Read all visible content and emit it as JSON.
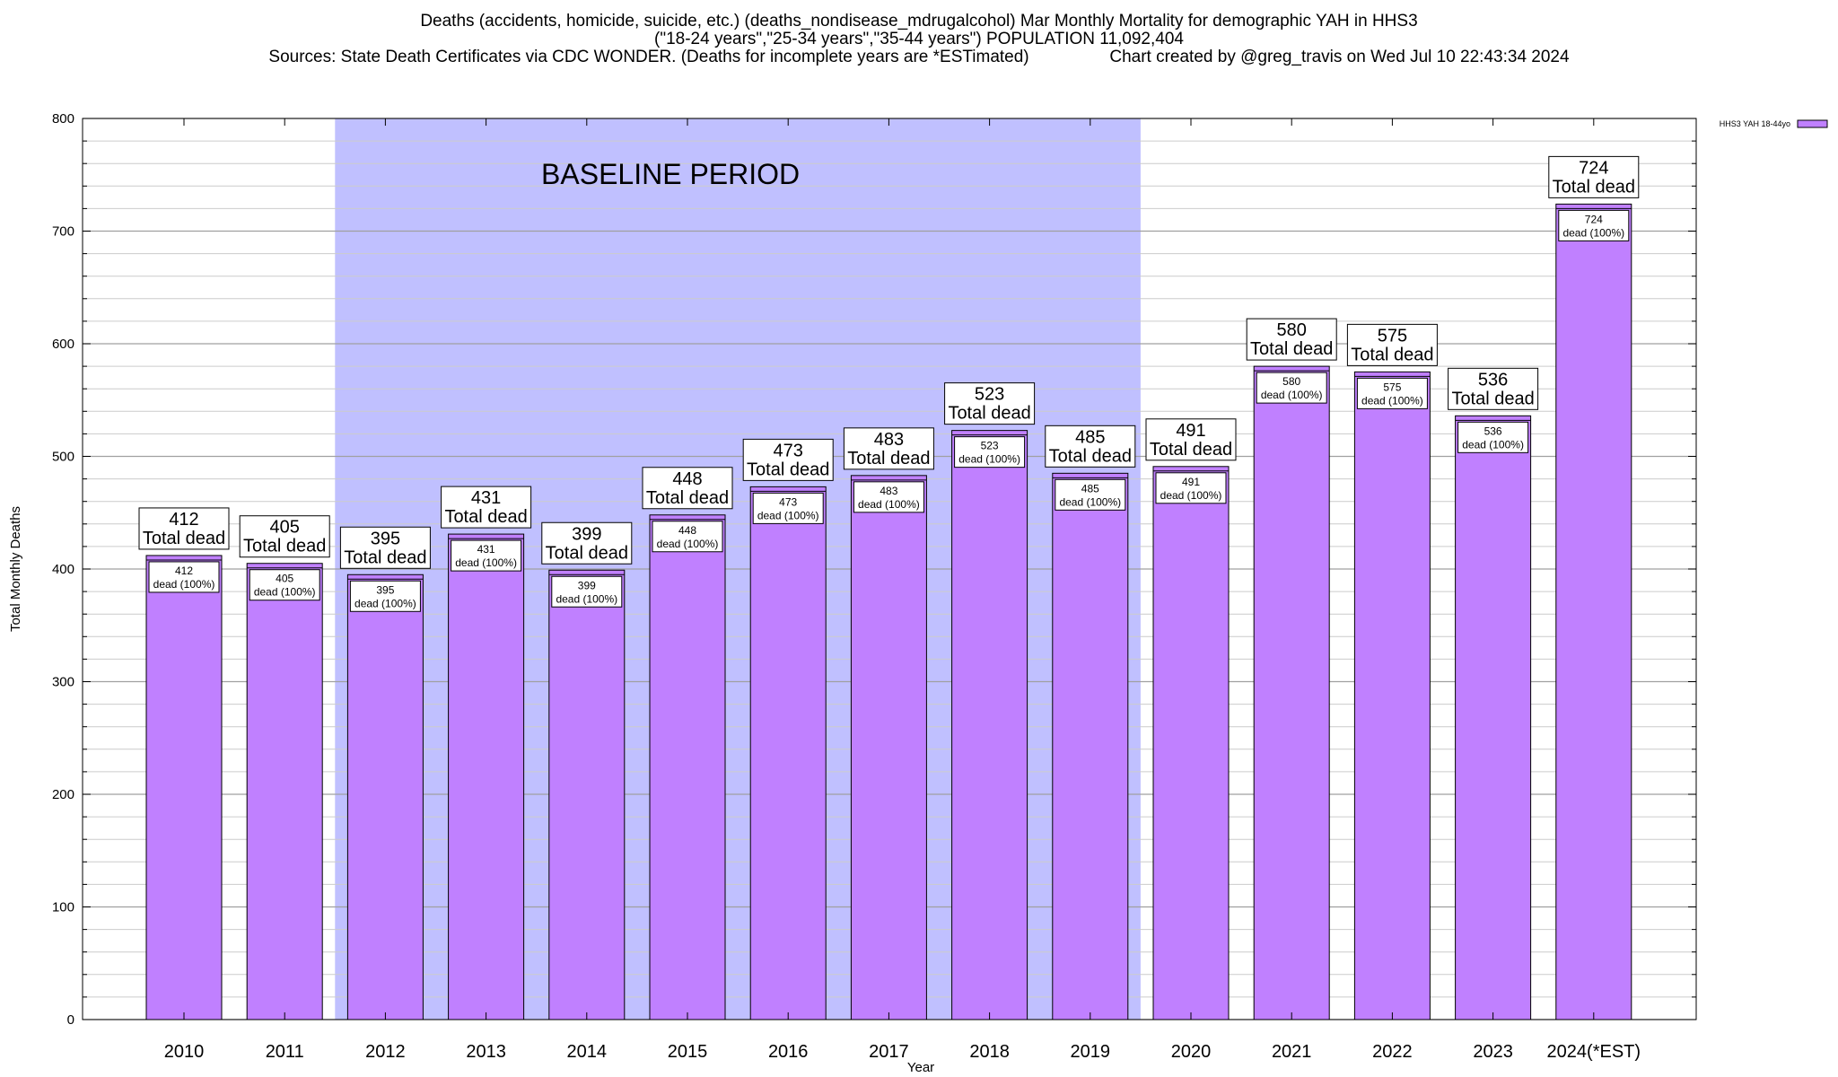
{
  "title_lines": [
    "Deaths (accidents, homicide, suicide, etc.) (deaths_nondisease_mdrugalcohol) Mar Monthly Mortality for demographic YAH in HHS3",
    "(\"18-24 years\",\"25-34 years\",\"35-44 years\") POPULATION 11,092,404",
    "Sources: State Death Certificates via CDC WONDER. (Deaths for incomplete years are *ESTimated)                 Chart created by @greg_travis on Wed Jul 10 22:43:34 2024"
  ],
  "chart_data": {
    "type": "bar",
    "categories": [
      "2010",
      "2011",
      "2012",
      "2013",
      "2014",
      "2015",
      "2016",
      "2017",
      "2018",
      "2019",
      "2020",
      "2021",
      "2022",
      "2023",
      "2024(*EST)"
    ],
    "series": [
      {
        "name": "HHS3 YAH 18-44yo",
        "values": [
          412,
          405,
          395,
          431,
          399,
          448,
          473,
          483,
          523,
          485,
          491,
          580,
          575,
          536,
          724
        ]
      }
    ],
    "xlabel": "Year",
    "ylabel": "Total Monthly Deaths",
    "ylim": [
      0,
      800
    ],
    "yticks": [
      0,
      100,
      200,
      300,
      400,
      500,
      600,
      700,
      800
    ],
    "grid": true,
    "legend": "top-right",
    "bar_color": "#c080ff",
    "baseline": {
      "label": "BASELINE PERIOD",
      "start": "2012",
      "end": "2019",
      "color": "#c0c0ff"
    },
    "top_label_suffix": "Total dead",
    "inner_label_suffix": "dead (100%)"
  }
}
